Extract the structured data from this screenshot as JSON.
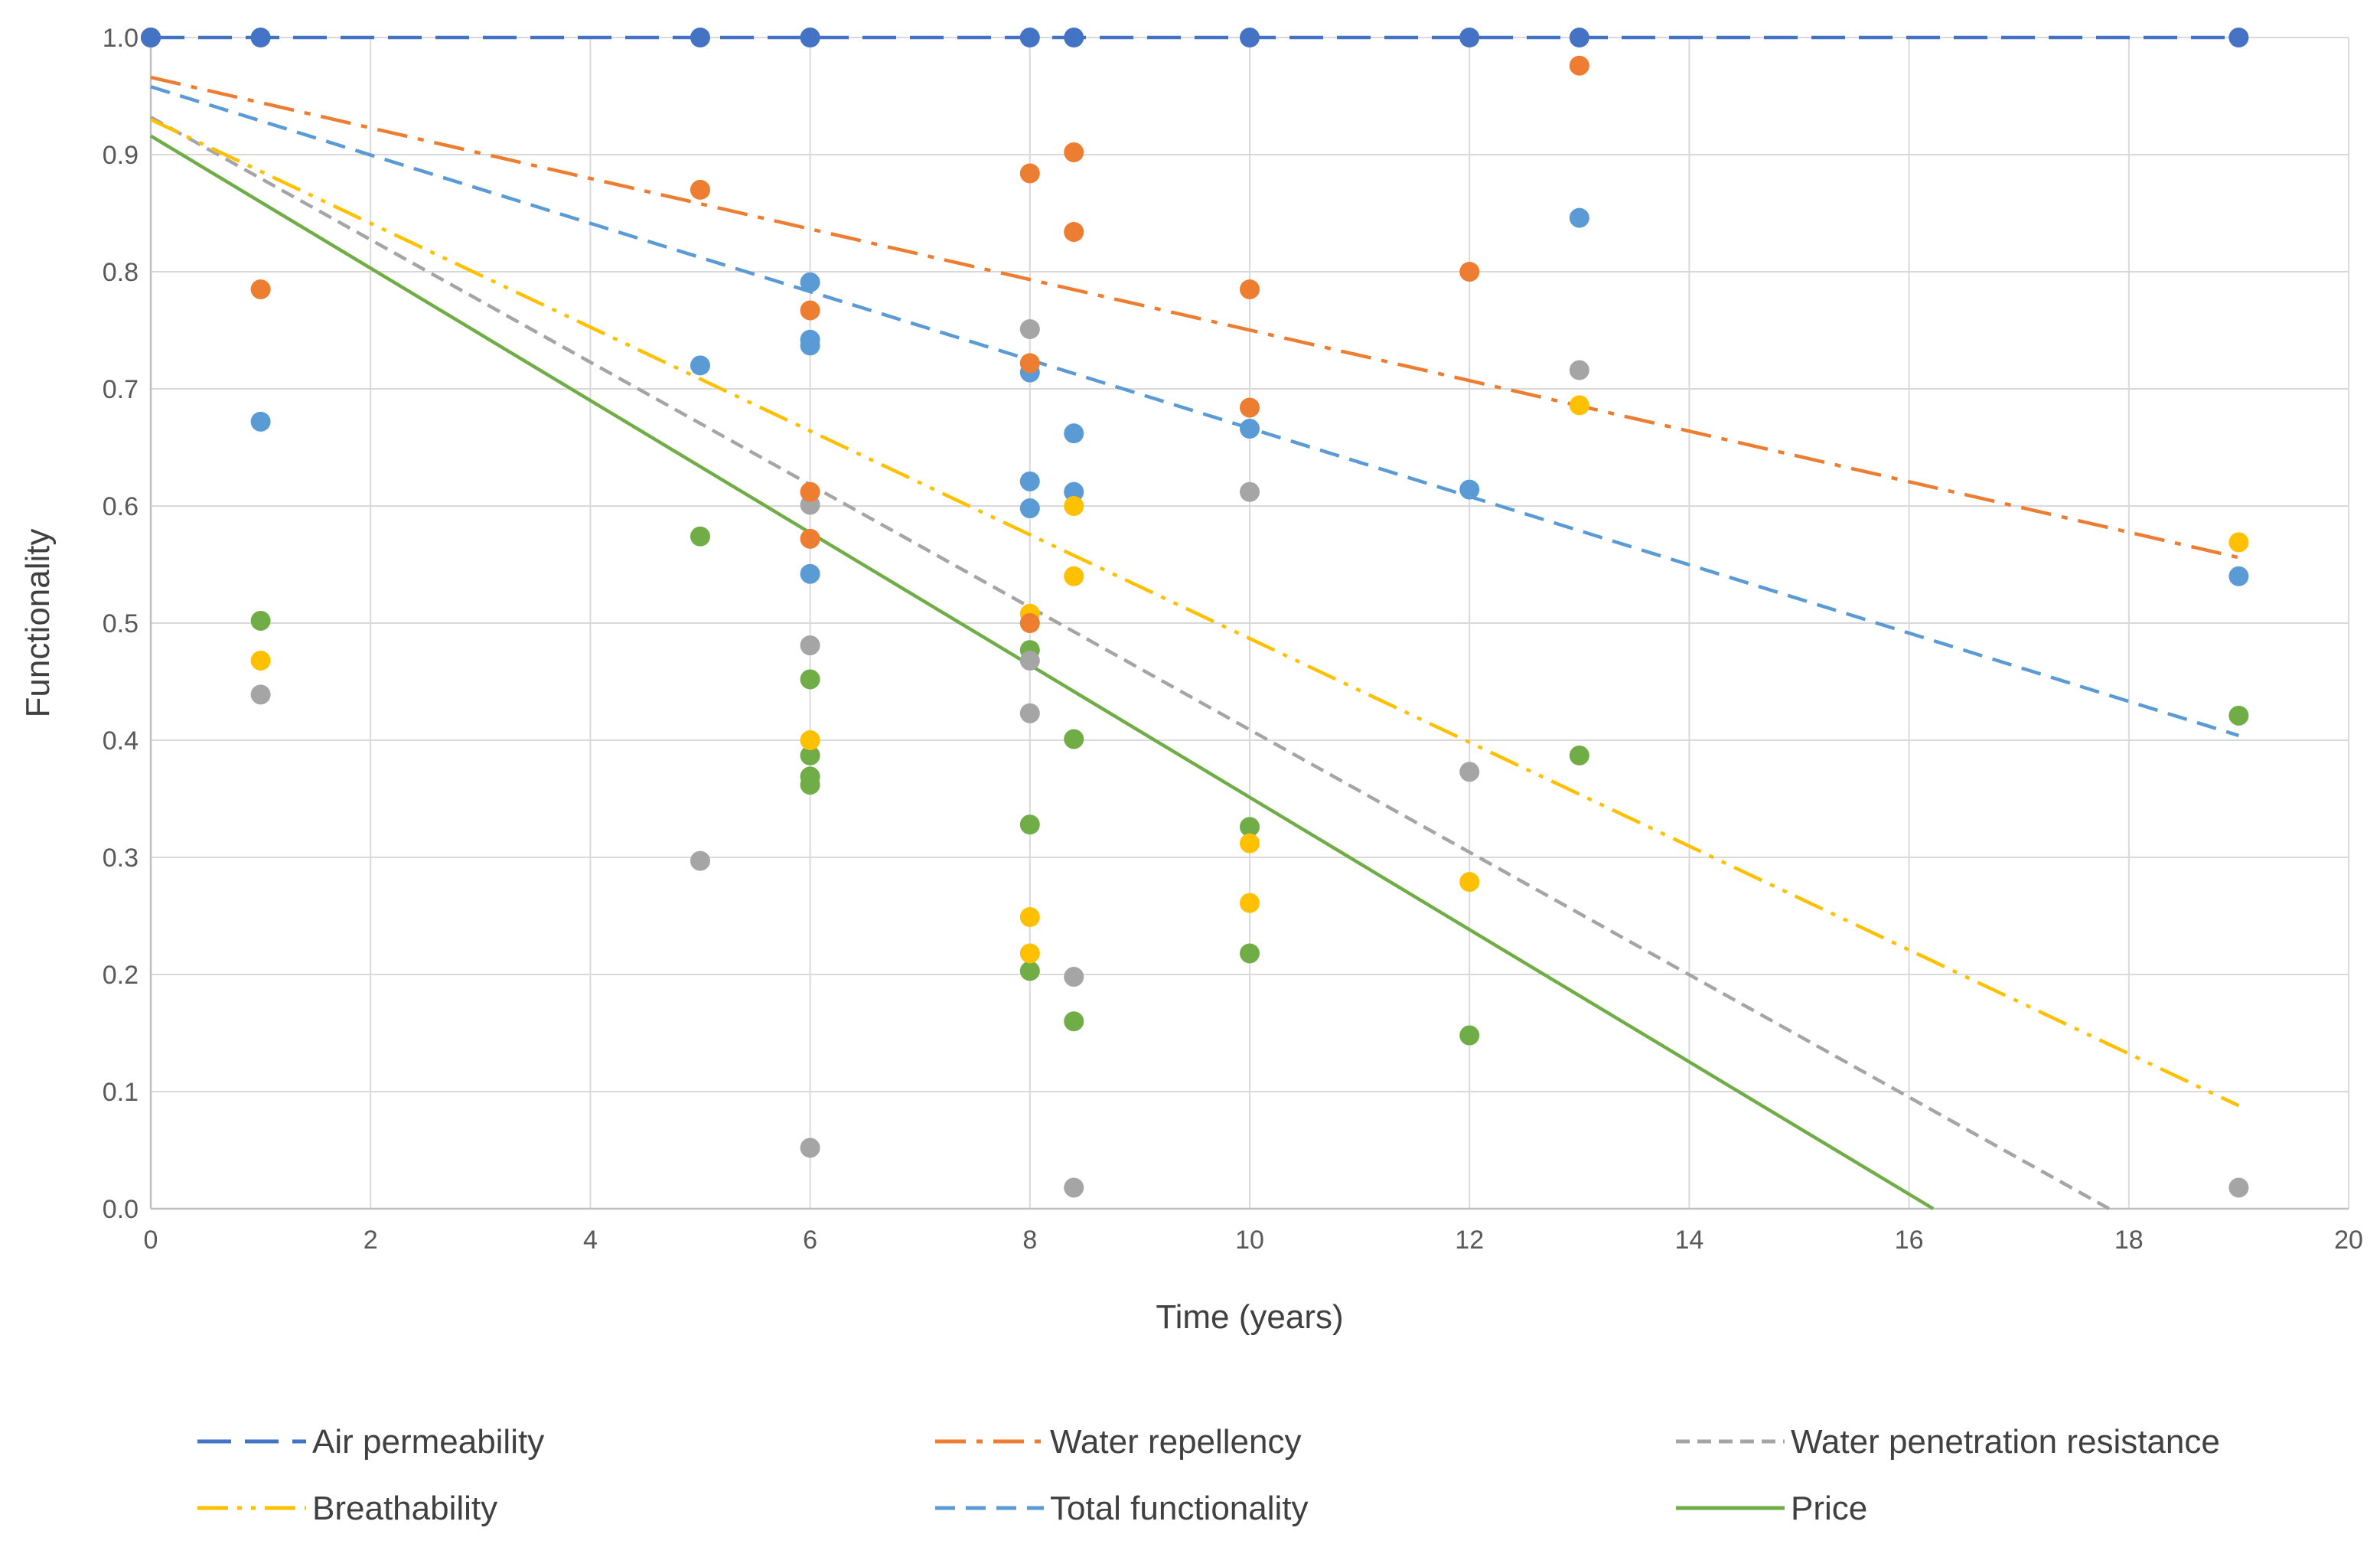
{
  "chart_data": {
    "type": "scatter",
    "title": "",
    "xlabel": "Time (years)",
    "ylabel": "Functionality",
    "xlim": [
      0,
      20
    ],
    "ylim": [
      0,
      1
    ],
    "xticks": [
      0,
      2,
      4,
      6,
      8,
      10,
      12,
      14,
      16,
      18,
      20
    ],
    "yticks": [
      0,
      0.1,
      0.2,
      0.3,
      0.4,
      0.5,
      0.6,
      0.7,
      0.8,
      0.9,
      1.0
    ],
    "xtick_labels": [
      "0",
      "2",
      "4",
      "6",
      "8",
      "10",
      "12",
      "14",
      "16",
      "18",
      "20"
    ],
    "ytick_labels": [
      "0.0",
      "0.1",
      "0.2",
      "0.3",
      "0.4",
      "0.5",
      "0.6",
      "0.7",
      "0.8",
      "0.9",
      "1.0"
    ],
    "grid": true,
    "legend_position": "bottom",
    "series": [
      {
        "name": "Air permeability",
        "color": "#4472c4",
        "dash": "long-dash",
        "points": [
          [
            0,
            1.0
          ],
          [
            1,
            1.0
          ],
          [
            5,
            1.0
          ],
          [
            6,
            1.0
          ],
          [
            8,
            1.0
          ],
          [
            8.4,
            1.0
          ],
          [
            10,
            1.0
          ],
          [
            12,
            1.0
          ],
          [
            13,
            1.0
          ],
          [
            19,
            1.0
          ]
        ],
        "trendline": [
          [
            0,
            1.0
          ],
          [
            19,
            1.0
          ]
        ]
      },
      {
        "name": "Water repellency",
        "color": "#ed7d31",
        "dash": "dash-dot",
        "points": [
          [
            0,
            1.0
          ],
          [
            1,
            0.785
          ],
          [
            5,
            0.87
          ],
          [
            6,
            0.767
          ],
          [
            6,
            0.612
          ],
          [
            6,
            0.572
          ],
          [
            8,
            0.884
          ],
          [
            8,
            0.722
          ],
          [
            8,
            0.5
          ],
          [
            8.4,
            0.902
          ],
          [
            8.4,
            0.834
          ],
          [
            10,
            0.785
          ],
          [
            10,
            0.684
          ],
          [
            12,
            0.8
          ],
          [
            13,
            0.976
          ]
        ],
        "trendline": [
          [
            0,
            0.966
          ],
          [
            19,
            0.556
          ]
        ]
      },
      {
        "name": "Water penetration resistance",
        "color": "#a5a5a5",
        "dash": "short-dash",
        "points": [
          [
            0,
            1.0
          ],
          [
            1,
            0.439
          ],
          [
            5,
            0.297
          ],
          [
            6,
            1.0
          ],
          [
            6,
            0.601
          ],
          [
            6,
            0.481
          ],
          [
            6,
            0.052
          ],
          [
            8,
            0.751
          ],
          [
            8,
            0.468
          ],
          [
            8,
            0.423
          ],
          [
            8.4,
            0.198
          ],
          [
            8.4,
            0.018
          ],
          [
            10,
            0.612
          ],
          [
            12,
            0.373
          ],
          [
            13,
            0.716
          ],
          [
            19,
            0.018
          ]
        ],
        "trendline": [
          [
            0,
            0.932
          ],
          [
            17.82,
            0.0
          ]
        ]
      },
      {
        "name": "Breathability",
        "color": "#ffc000",
        "dash": "dash-dot-dot",
        "points": [
          [
            0,
            1.0
          ],
          [
            1,
            0.468
          ],
          [
            6,
            0.4
          ],
          [
            8,
            0.508
          ],
          [
            8,
            0.249
          ],
          [
            8,
            0.218
          ],
          [
            8.4,
            0.6
          ],
          [
            8.4,
            0.54
          ],
          [
            10,
            0.312
          ],
          [
            10,
            0.261
          ],
          [
            12,
            0.279
          ],
          [
            13,
            0.686
          ],
          [
            19,
            0.569
          ]
        ],
        "trendline": [
          [
            0,
            0.93
          ],
          [
            19,
            0.088
          ]
        ]
      },
      {
        "name": "Total functionality",
        "color": "#5b9bd5",
        "dash": "dash",
        "points": [
          [
            0,
            1.0
          ],
          [
            1,
            0.672
          ],
          [
            5,
            0.72
          ],
          [
            6,
            0.791
          ],
          [
            6,
            0.742
          ],
          [
            6,
            0.737
          ],
          [
            6,
            0.542
          ],
          [
            8,
            0.714
          ],
          [
            8,
            0.621
          ],
          [
            8,
            0.598
          ],
          [
            8.4,
            0.662
          ],
          [
            8.4,
            0.612
          ],
          [
            10,
            0.666
          ],
          [
            12,
            0.614
          ],
          [
            13,
            0.846
          ],
          [
            19,
            0.54
          ]
        ],
        "trendline": [
          [
            0,
            0.958
          ],
          [
            19,
            0.404
          ]
        ]
      },
      {
        "name": "Price",
        "color": "#70ad47",
        "dash": "solid",
        "points": [
          [
            0,
            1.0
          ],
          [
            1,
            0.502
          ],
          [
            5,
            0.574
          ],
          [
            6,
            0.452
          ],
          [
            6,
            0.387
          ],
          [
            6,
            0.369
          ],
          [
            6,
            0.362
          ],
          [
            8,
            0.477
          ],
          [
            8,
            0.328
          ],
          [
            8,
            0.203
          ],
          [
            8.4,
            0.401
          ],
          [
            8.4,
            0.16
          ],
          [
            10,
            0.326
          ],
          [
            10,
            0.218
          ],
          [
            12,
            0.148
          ],
          [
            13,
            0.387
          ],
          [
            19,
            0.421
          ]
        ],
        "trendline": [
          [
            0,
            0.916
          ],
          [
            16.22,
            0.0
          ]
        ]
      }
    ]
  }
}
